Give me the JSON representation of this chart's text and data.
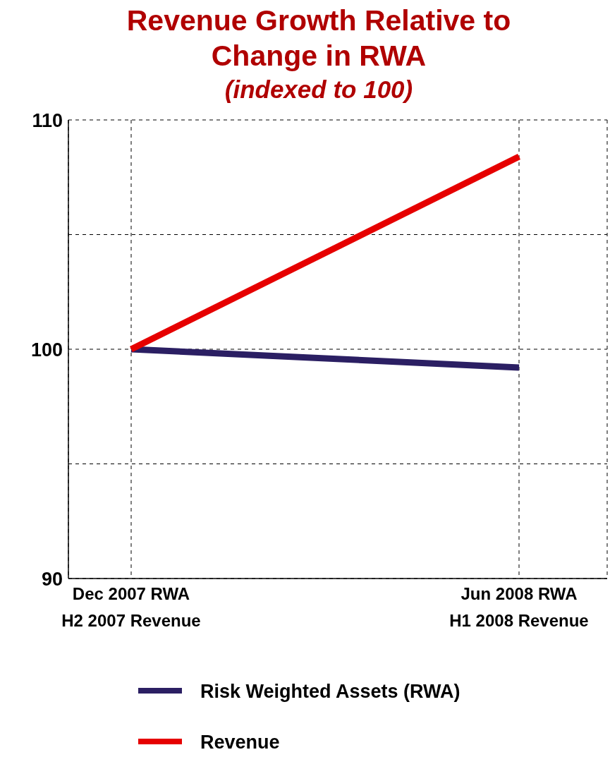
{
  "chart_data": {
    "type": "line",
    "title": "Revenue Growth Relative to Change in RWA",
    "subtitle": "(indexed to 100)",
    "categories": [
      "Dec 2007 RWA\nH2 2007 Revenue",
      "Jun 2008 RWA\nH1 2008 Revenue"
    ],
    "series": [
      {
        "name": "Risk Weighted Assets (RWA)",
        "color": "#2b1f63",
        "values": [
          100,
          99.2
        ]
      },
      {
        "name": "Revenue",
        "color": "#e60000",
        "values": [
          100,
          108.4
        ]
      }
    ],
    "ylim": [
      90,
      110
    ],
    "yticks": [
      90,
      {
        "value": 95,
        "label": null
      },
      100,
      {
        "value": 105,
        "label": null
      },
      110
    ],
    "grid": true,
    "line_style": "solid",
    "marker": "none",
    "legend": "bottom"
  }
}
